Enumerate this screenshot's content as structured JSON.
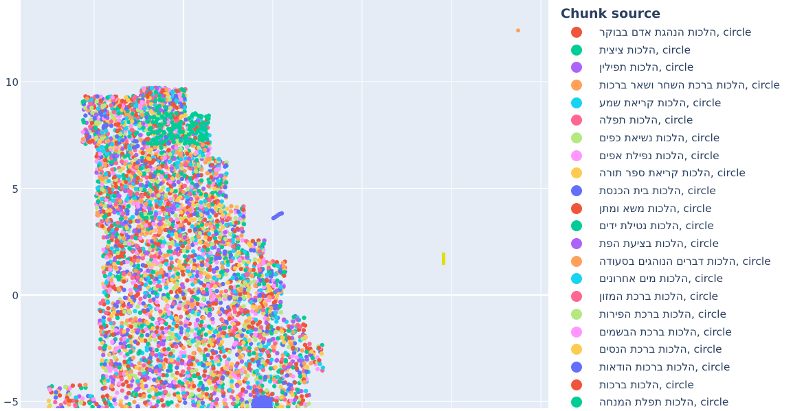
{
  "chart_data": {
    "type": "scatter",
    "title": "",
    "xlabel": "",
    "ylabel": "",
    "yticks": [
      "10",
      "5",
      "0",
      "−5"
    ],
    "ylim": [
      -5.5,
      13.8
    ],
    "grid": true,
    "legend_placement": "right",
    "legend_title": "Chunk source",
    "series": [
      {
        "name": "הלכות הנהגת אדם בבוקר, circle",
        "color": "#EF553B"
      },
      {
        "name": "הלכות ציצית, circle",
        "color": "#00CC96"
      },
      {
        "name": "הלכות תפילין, circle",
        "color": "#AB63FA"
      },
      {
        "name": "הלכות ברכת השחר ושאר ברכות, circle",
        "color": "#FFA15A"
      },
      {
        "name": "הלכות קריאת שמע, circle",
        "color": "#19D3F3"
      },
      {
        "name": "הלכות תפלה, circle",
        "color": "#FF6692"
      },
      {
        "name": "הלכות נשיאת כפים, circle",
        "color": "#B6E880"
      },
      {
        "name": "הלכות נפילת אפים, circle",
        "color": "#FF97FF"
      },
      {
        "name": "הלכות קריאת ספר תורה, circle",
        "color": "#FECB52"
      },
      {
        "name": "הלכות בית הכנסת, circle",
        "color": "#636EFA"
      },
      {
        "name": "הלכות משא ומתן, circle",
        "color": "#EF553B"
      },
      {
        "name": "הלכות נטילת ידים, circle",
        "color": "#00CC96"
      },
      {
        "name": "הלכות בציעת הפת, circle",
        "color": "#AB63FA"
      },
      {
        "name": "הלכות דברים הנוהגים בסעודה, circle",
        "color": "#FFA15A"
      },
      {
        "name": "הלכות מים אחרונים, circle",
        "color": "#19D3F3"
      },
      {
        "name": "הלכות ברכת המזון, circle",
        "color": "#FF6692"
      },
      {
        "name": "הלכות ברכת הפירות, circle",
        "color": "#B6E880"
      },
      {
        "name": "הלכות ברכת הבשמים, circle",
        "color": "#FF97FF"
      },
      {
        "name": "הלכות ברכת הנסים, circle",
        "color": "#FECB52"
      },
      {
        "name": "הלכות ברכות הודאות, circle",
        "color": "#636EFA"
      },
      {
        "name": "הלכות ברכות, circle",
        "color": "#EF553B"
      },
      {
        "name": "הלכות תפלת המנחה, circle",
        "color": "#00CC96"
      }
    ],
    "outliers": [
      {
        "y": 12.4,
        "color": "#FFA15A"
      },
      {
        "y": 1.7,
        "color": "#E0E000"
      }
    ]
  }
}
